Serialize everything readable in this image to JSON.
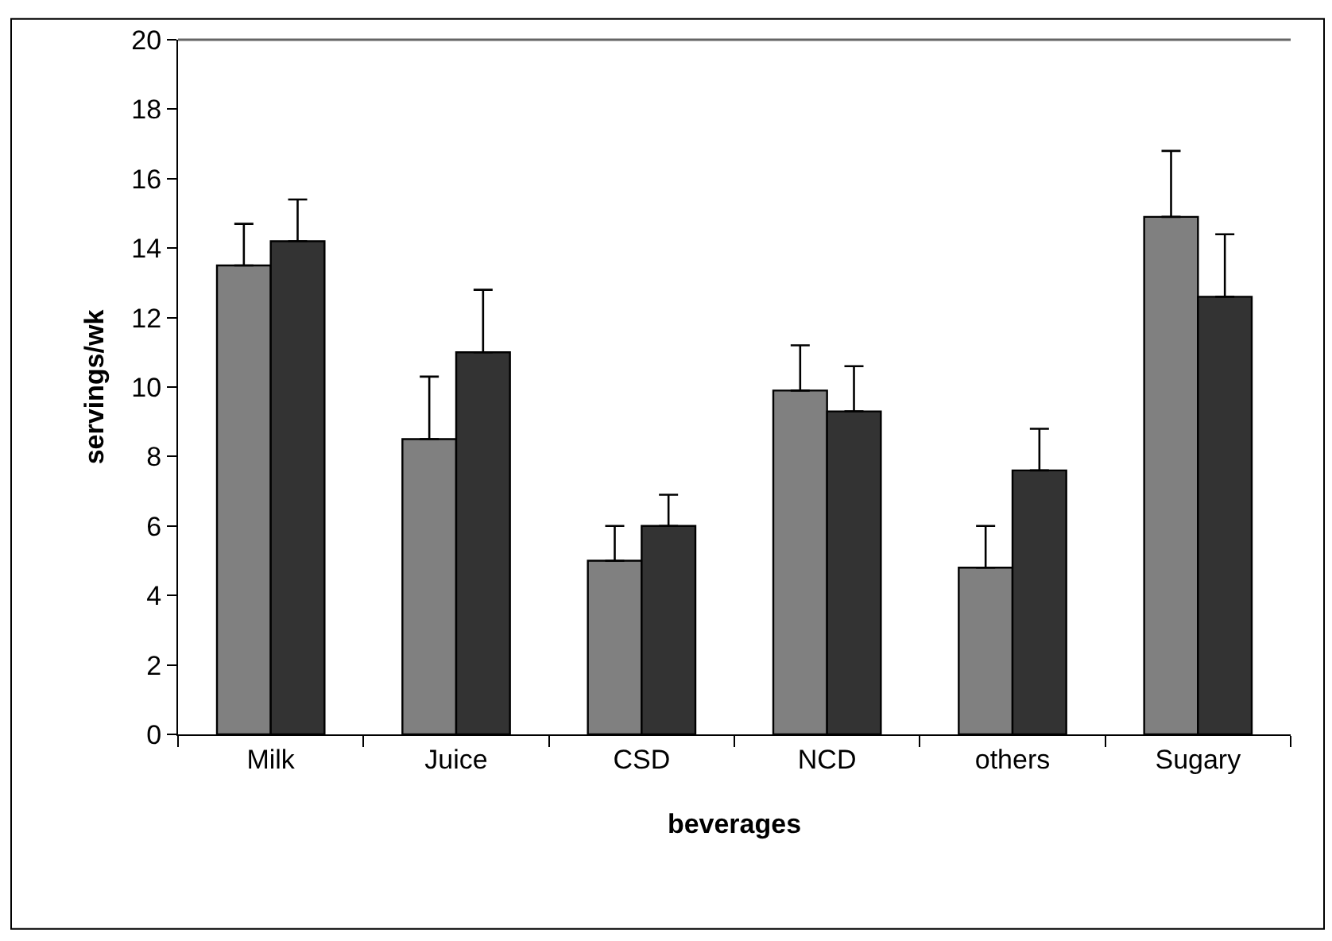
{
  "chart_data": {
    "type": "bar",
    "xlabel": "beverages",
    "ylabel": "servings/wk",
    "categories": [
      "Milk",
      "Juice",
      "CSD",
      "NCD",
      "others",
      "Sugary"
    ],
    "series": [
      {
        "color": "#808080",
        "values": [
          13.5,
          8.5,
          5.0,
          9.9,
          4.8,
          14.9
        ],
        "errors": [
          [
            13.5,
            14.7
          ],
          [
            8.5,
            10.3
          ],
          [
            5.0,
            6.0
          ],
          [
            9.9,
            11.2
          ],
          [
            4.8,
            6.0
          ],
          [
            14.9,
            16.8
          ]
        ]
      },
      {
        "color": "#333333",
        "values": [
          14.2,
          11.0,
          6.0,
          9.3,
          7.6,
          12.6
        ],
        "errors": [
          [
            14.2,
            15.4
          ],
          [
            11.0,
            12.8
          ],
          [
            6.0,
            6.9
          ],
          [
            9.3,
            10.6
          ],
          [
            7.6,
            8.8
          ],
          [
            12.6,
            14.4
          ]
        ]
      }
    ],
    "ylim": [
      0,
      20
    ],
    "yticks": [
      0,
      2,
      4,
      6,
      8,
      10,
      12,
      14,
      16,
      18,
      20
    ]
  }
}
